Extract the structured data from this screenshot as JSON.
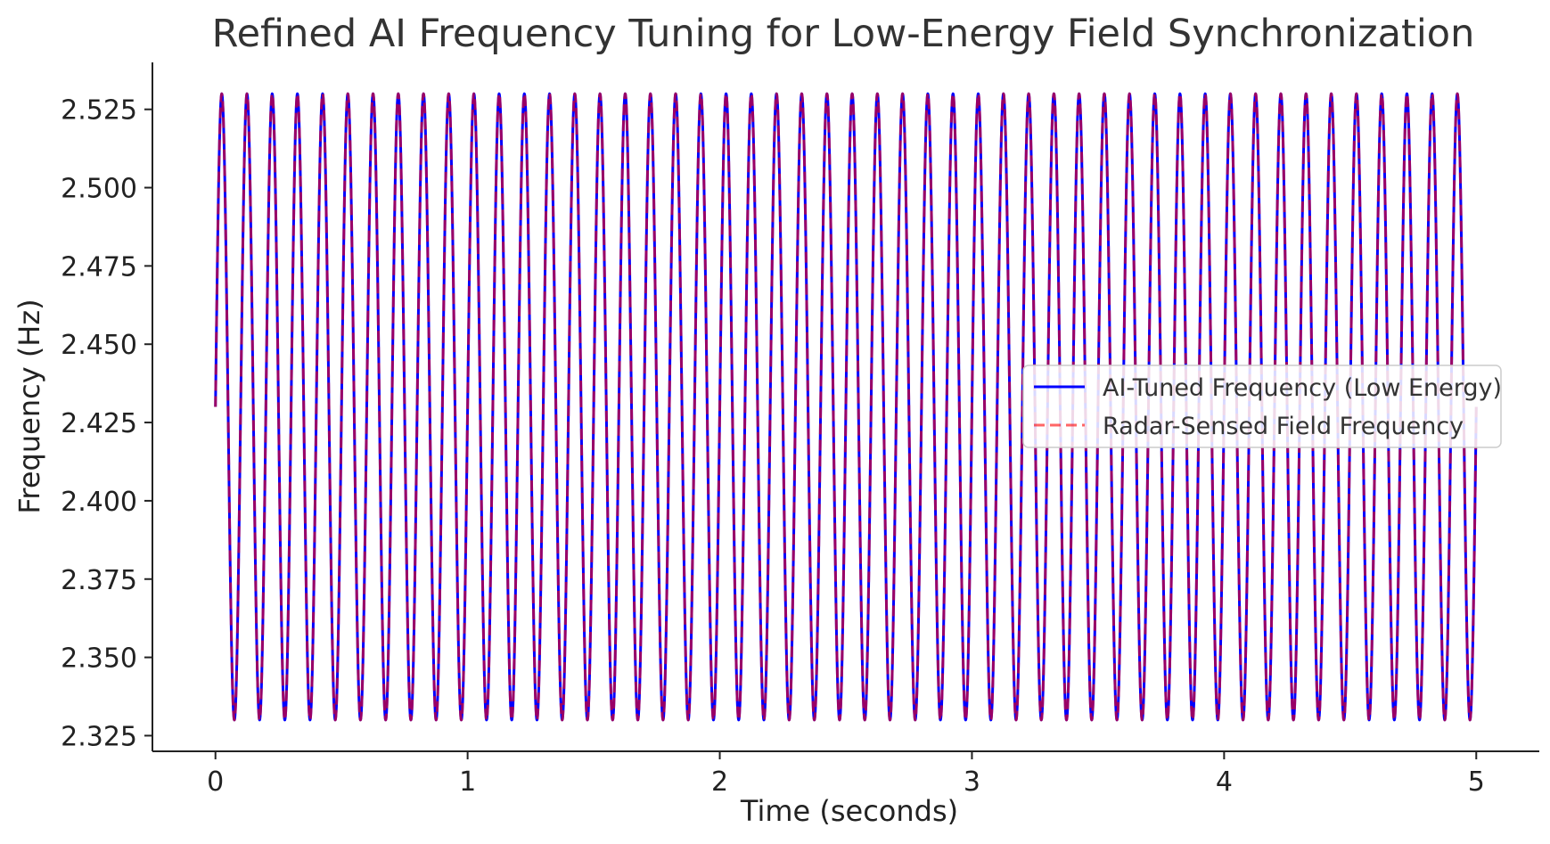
{
  "chart_data": {
    "type": "line",
    "title": "Refined AI Frequency Tuning for Low-Energy Field Synchronization",
    "xlabel": "Time (seconds)",
    "ylabel": "Frequency (Hz)",
    "xlim": [
      -0.25,
      5.25
    ],
    "ylim": [
      2.32,
      2.54
    ],
    "xticks": [
      0,
      1,
      2,
      3,
      4,
      5
    ],
    "xtick_labels": [
      "0",
      "1",
      "2",
      "3",
      "4",
      "5"
    ],
    "yticks": [
      2.325,
      2.35,
      2.375,
      2.4,
      2.425,
      2.45,
      2.475,
      2.5,
      2.525
    ],
    "ytick_labels": [
      "2.325",
      "2.350",
      "2.375",
      "2.400",
      "2.425",
      "2.450",
      "2.475",
      "2.500",
      "2.525"
    ],
    "grid": false,
    "legend_position": "center-right",
    "x_range": [
      0,
      5
    ],
    "series": [
      {
        "name": "AI-Tuned Frequency (Low Energy)",
        "color": "#0000ff",
        "style": "solid",
        "function": "center + amplitude * sin(2*pi*frequency*t)",
        "center": 2.43,
        "amplitude": 0.1,
        "frequency_hz": 10
      },
      {
        "name": "Radar-Sensed Field Frequency",
        "color": "#ff0000",
        "style": "dashed",
        "opacity": 0.6,
        "function": "center + amplitude * sin(2*pi*frequency*t)",
        "center": 2.43,
        "amplitude": 0.1,
        "frequency_hz": 10
      }
    ]
  }
}
